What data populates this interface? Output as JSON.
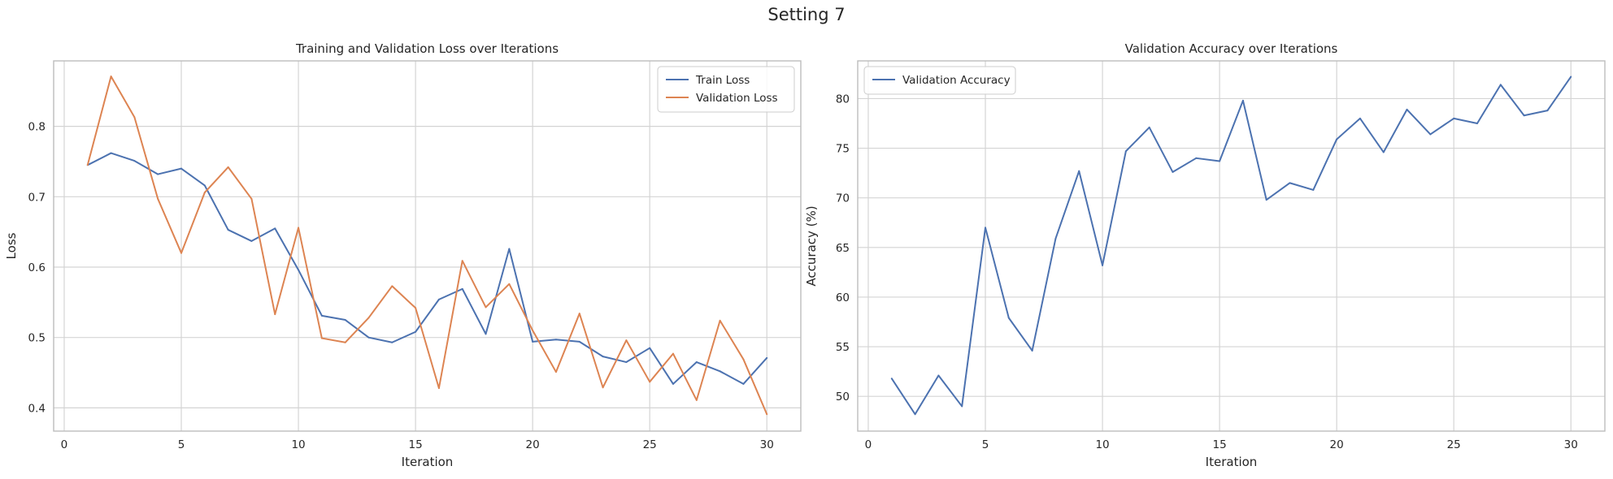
{
  "suptitle": "Setting 7",
  "colors": {
    "train": "#4c72b0",
    "val": "#dd8452",
    "grid": "#d4d4d4",
    "frame": "#bdbdbd"
  },
  "chart_data": [
    {
      "type": "line",
      "title": "Training and Validation Loss over Iterations",
      "xlabel": "Iteration",
      "ylabel": "Loss",
      "xlim": [
        -0.45,
        31.45
      ],
      "ylim": [
        0.367,
        0.893
      ],
      "xticks": [
        0,
        5,
        10,
        15,
        20,
        25,
        30
      ],
      "yticks": [
        0.4,
        0.5,
        0.6,
        0.7,
        0.8
      ],
      "grid": true,
      "legend": "top-right",
      "x": [
        1,
        2,
        3,
        4,
        5,
        6,
        7,
        8,
        9,
        10,
        11,
        12,
        13,
        14,
        15,
        16,
        17,
        18,
        19,
        20,
        21,
        22,
        23,
        24,
        25,
        26,
        27,
        28,
        29,
        30
      ],
      "series": [
        {
          "name": "Train Loss",
          "color": "#4c72b0",
          "values": [
            0.745,
            0.762,
            0.751,
            0.732,
            0.74,
            0.716,
            0.653,
            0.637,
            0.655,
            0.596,
            0.531,
            0.525,
            0.5,
            0.493,
            0.508,
            0.554,
            0.569,
            0.505,
            0.626,
            0.494,
            0.497,
            0.494,
            0.473,
            0.465,
            0.485,
            0.434,
            0.465,
            0.452,
            0.434,
            0.471
          ]
        },
        {
          "name": "Validation Loss",
          "color": "#dd8452",
          "values": [
            0.745,
            0.871,
            0.813,
            0.697,
            0.62,
            0.706,
            0.742,
            0.697,
            0.533,
            0.656,
            0.499,
            0.493,
            0.528,
            0.573,
            0.542,
            0.428,
            0.609,
            0.543,
            0.576,
            0.51,
            0.451,
            0.534,
            0.429,
            0.496,
            0.437,
            0.477,
            0.411,
            0.524,
            0.469,
            0.391
          ]
        }
      ]
    },
    {
      "type": "line",
      "title": "Validation Accuracy over Iterations",
      "xlabel": "Iteration",
      "ylabel": "Accuracy (%)",
      "xlim": [
        -0.45,
        31.45
      ],
      "ylim": [
        46.5,
        83.8
      ],
      "xticks": [
        0,
        5,
        10,
        15,
        20,
        25,
        30
      ],
      "yticks": [
        50,
        55,
        60,
        65,
        70,
        75,
        80
      ],
      "grid": true,
      "legend": "top-left",
      "x": [
        1,
        2,
        3,
        4,
        5,
        6,
        7,
        8,
        9,
        10,
        11,
        12,
        13,
        14,
        15,
        16,
        17,
        18,
        19,
        20,
        21,
        22,
        23,
        24,
        25,
        26,
        27,
        28,
        29,
        30
      ],
      "series": [
        {
          "name": "Validation Accuracy",
          "color": "#4c72b0",
          "values": [
            51.8,
            48.2,
            52.1,
            49.0,
            67.0,
            57.9,
            54.6,
            65.9,
            72.7,
            63.2,
            74.7,
            77.1,
            72.6,
            74.0,
            73.7,
            79.8,
            69.8,
            71.5,
            70.8,
            75.9,
            78.0,
            74.6,
            78.9,
            76.4,
            78.0,
            77.5,
            81.4,
            78.3,
            78.8,
            82.2
          ]
        }
      ]
    }
  ]
}
